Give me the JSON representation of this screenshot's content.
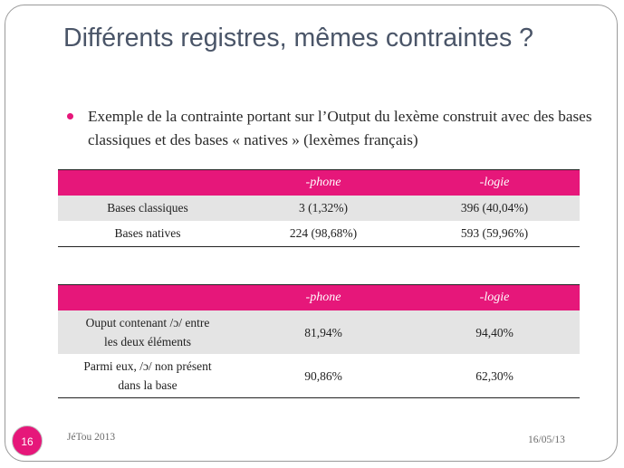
{
  "title": "Différents registres, mêmes contraintes ?",
  "bullet": "Exemple de la contrainte portant sur l’Output du lexème construit avec des bases classiques et des bases « natives » (lexèmes français)",
  "accent_color": "#e6177a",
  "table1": {
    "headers": [
      "",
      "-phone",
      "-logie"
    ],
    "rows": [
      [
        "Bases classiques",
        "3 (1,32%)",
        "396 (40,04%)"
      ],
      [
        "Bases natives",
        "224 (98,68%)",
        "593 (59,96%)"
      ]
    ]
  },
  "table2": {
    "headers": [
      "",
      "-phone",
      "-logie"
    ],
    "rows": [
      [
        "Ouput contenant /ɔ/ entre les deux éléments",
        "81,94%",
        "94,40%"
      ],
      [
        "Parmi eux, /ɔ/ non présent dans la base",
        "90,86%",
        "62,30%"
      ]
    ]
  },
  "footer": {
    "slide_number": "16",
    "event": "JéTou 2013",
    "date": "16/05/13"
  }
}
